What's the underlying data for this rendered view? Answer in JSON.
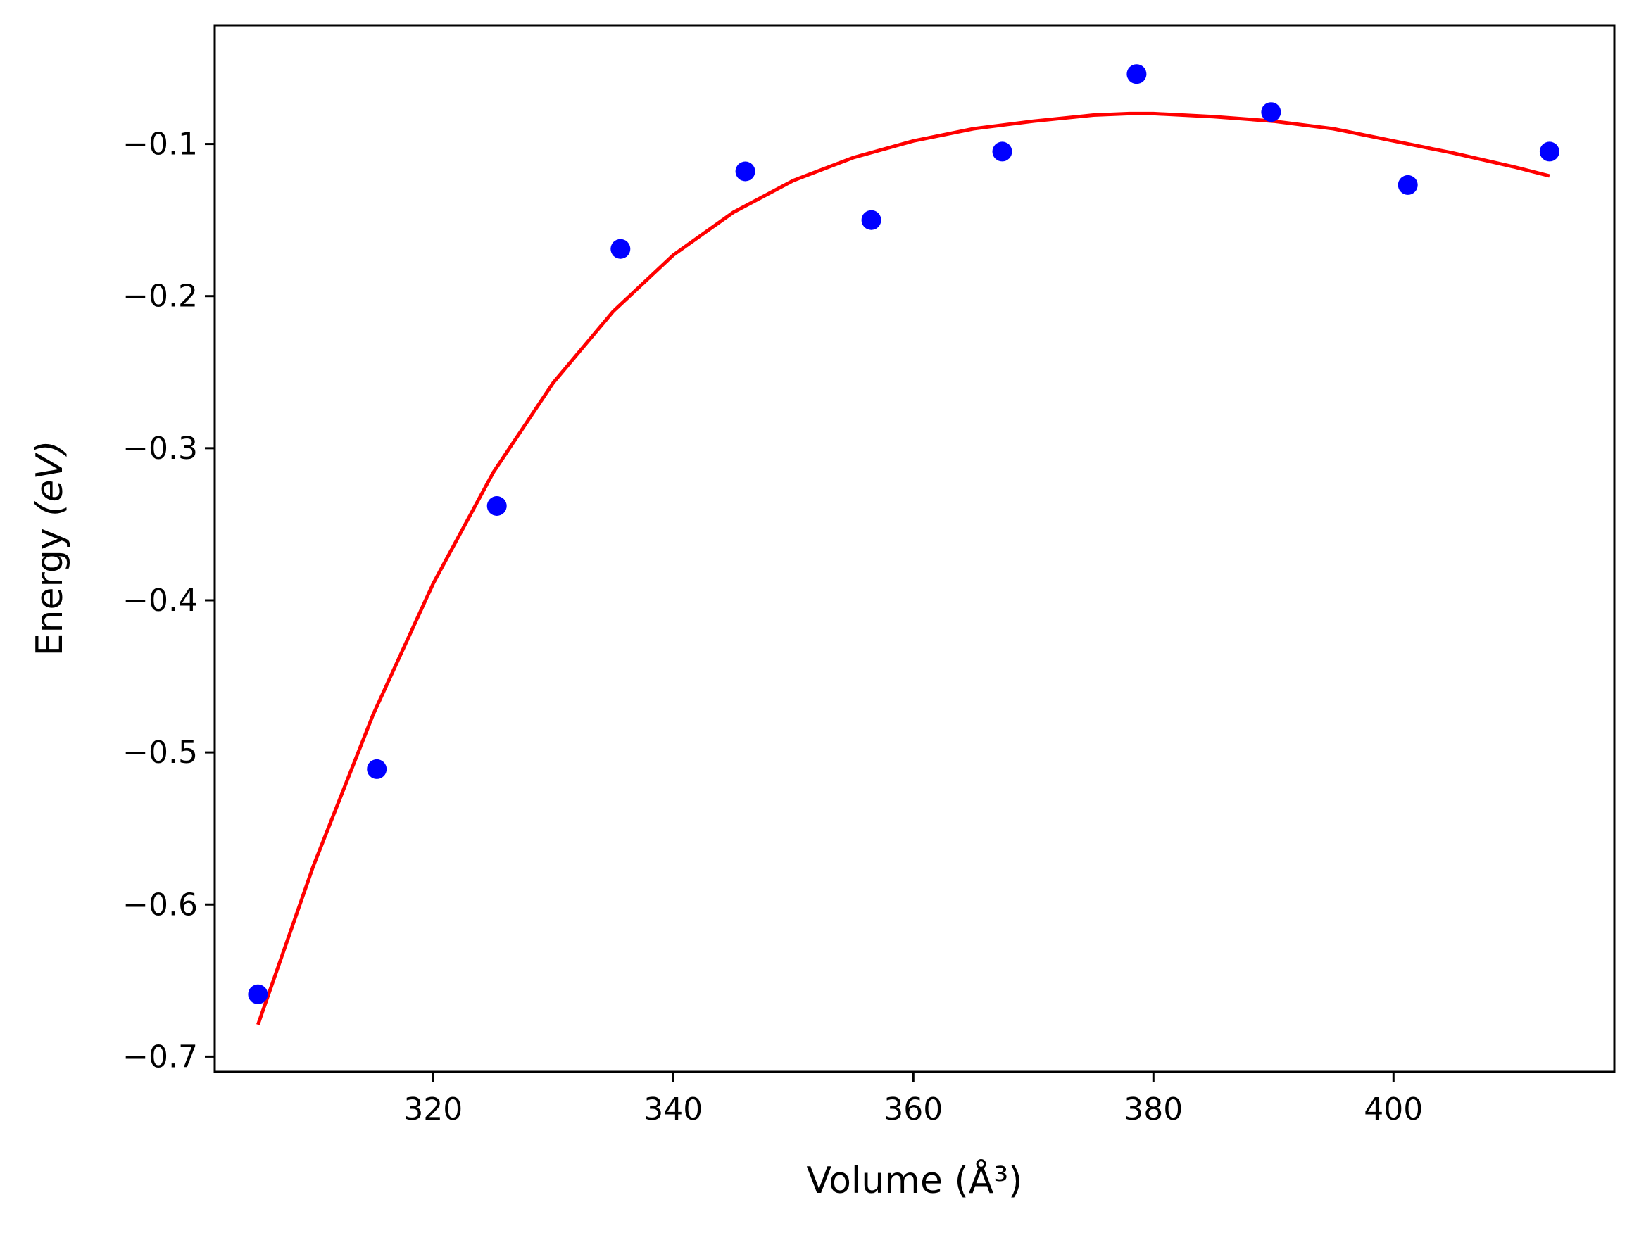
{
  "chart_data": {
    "type": "scatter",
    "title": "",
    "xlabel": "Volume",
    "xlabel_unit": "(Å³)",
    "ylabel": "Energy",
    "ylabel_unit": "(eV)",
    "xlim": [
      301.8,
      418.4
    ],
    "ylim": [
      -0.71,
      -0.022
    ],
    "xticks": [
      320,
      340,
      360,
      380,
      400
    ],
    "xtick_labels": [
      "320",
      "340",
      "360",
      "380",
      "400"
    ],
    "yticks": [
      -0.1,
      -0.2,
      -0.3,
      -0.4,
      -0.5,
      -0.6,
      -0.7
    ],
    "ytick_labels": [
      "−0.1",
      "−0.2",
      "−0.3",
      "−0.4",
      "−0.5",
      "−0.6",
      "−0.7"
    ],
    "grid": false,
    "legend": "none",
    "series": [
      {
        "kind": "scatter",
        "color": "#0000ff",
        "x": [
          305.4,
          315.3,
          325.3,
          335.6,
          346.0,
          356.5,
          367.4,
          378.6,
          389.8,
          401.2,
          413.0
        ],
        "y": [
          -0.659,
          -0.511,
          -0.338,
          -0.169,
          -0.118,
          -0.15,
          -0.105,
          -0.054,
          -0.079,
          -0.127,
          -0.105
        ]
      },
      {
        "kind": "line",
        "color": "#ff0000",
        "x": [
          305.4,
          310,
          315,
          320,
          325,
          330,
          335,
          340,
          345,
          350,
          355,
          360,
          365,
          370,
          375,
          378,
          380,
          385,
          390,
          395,
          400,
          405,
          410,
          413.0
        ],
        "y": [
          -0.679,
          -0.575,
          -0.475,
          -0.389,
          -0.316,
          -0.257,
          -0.21,
          -0.173,
          -0.145,
          -0.124,
          -0.109,
          -0.098,
          -0.09,
          -0.085,
          -0.081,
          -0.08,
          -0.08,
          -0.082,
          -0.085,
          -0.09,
          -0.098,
          -0.106,
          -0.115,
          -0.121
        ]
      }
    ]
  }
}
